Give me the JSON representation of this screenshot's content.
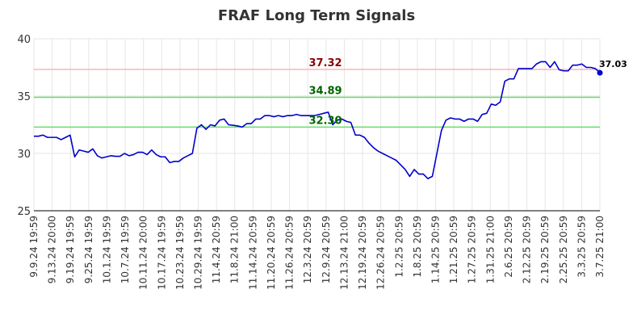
{
  "chart_data": {
    "type": "line",
    "title": "FRAF Long Term Signals",
    "xlabel": "",
    "ylabel": "",
    "ylim": [
      25,
      40
    ],
    "yticks": [
      25,
      30,
      35,
      40
    ],
    "grid": true,
    "line_color": "#0000cc",
    "xtick_labels": [
      "9.9.24 19:59",
      "9.13.24 20:00",
      "9.19.24 19:59",
      "9.25.24 19:59",
      "10.1.24 19:59",
      "10.7.24 19:59",
      "10.11.24 20:00",
      "10.17.24 19:59",
      "10.23.24 19:59",
      "10.29.24 19:59",
      "11.4.24 20:59",
      "11.8.24 21:00",
      "11.14.24 20:59",
      "11.20.24 20:59",
      "11.26.24 20:59",
      "12.3.24 20:59",
      "12.9.24 20:59",
      "12.13.24 21:00",
      "12.19.24 20:59",
      "12.26.24 20:59",
      "1.2.25 20:59",
      "1.8.25 20:59",
      "1.14.25 20:59",
      "1.21.25 20:59",
      "1.27.25 20:59",
      "1.31.25 21:00",
      "2.6.25 20:59",
      "2.12.25 20:59",
      "2.19.25 20:59",
      "2.25.25 20:59",
      "3.3.25 20:59",
      "3.7.25 21:00"
    ],
    "series": [
      {
        "values": [
          31.5,
          31.5,
          31.6,
          31.4,
          31.4,
          31.4,
          31.2,
          31.4,
          31.6,
          29.7,
          30.3,
          30.2,
          30.1,
          30.4,
          29.8,
          29.6,
          29.7,
          29.8,
          29.75,
          29.75,
          30.0,
          29.8,
          29.9,
          30.1,
          30.1,
          29.9,
          30.3,
          29.9,
          29.7,
          29.7,
          29.2,
          29.3,
          29.3,
          29.6,
          29.8,
          30.0,
          32.2,
          32.5,
          32.1,
          32.5,
          32.4,
          32.9,
          33.0,
          32.5,
          32.45,
          32.4,
          32.3,
          32.6,
          32.6,
          33.0,
          33.0,
          33.3,
          33.3,
          33.2,
          33.3,
          33.2,
          33.3,
          33.3,
          33.4,
          33.3,
          33.3,
          33.3,
          33.3,
          33.4,
          33.5,
          33.6,
          32.5,
          32.9,
          33.0,
          32.8,
          32.7,
          31.6,
          31.6,
          31.4,
          30.9,
          30.5,
          30.2,
          30.0,
          29.8,
          29.6,
          29.4,
          29.0,
          28.6,
          28.0,
          28.6,
          28.2,
          28.2,
          27.8,
          28.0,
          30.0,
          32.0,
          32.9,
          33.1,
          33.0,
          33.0,
          32.8,
          33.0,
          33.0,
          32.8,
          33.4,
          33.5,
          34.3,
          34.2,
          34.5,
          36.3,
          36.5,
          36.5,
          37.4,
          37.4,
          37.4,
          37.4,
          37.8,
          38.0,
          38.0,
          37.5,
          38.0,
          37.3,
          37.2,
          37.2,
          37.7,
          37.7,
          37.8,
          37.5,
          37.5,
          37.4,
          37.03
        ]
      }
    ],
    "reference_lines": [
      {
        "value": 37.32,
        "label": "37.32",
        "color": "#ffb3b3",
        "label_color": "#8b0000"
      },
      {
        "value": 34.89,
        "label": "34.89",
        "color": "#66dd66",
        "label_color": "#006400"
      },
      {
        "value": 32.3,
        "label": "32.30",
        "color": "#66dd66",
        "label_color": "#006400"
      }
    ],
    "last_value_label": "37.03"
  }
}
